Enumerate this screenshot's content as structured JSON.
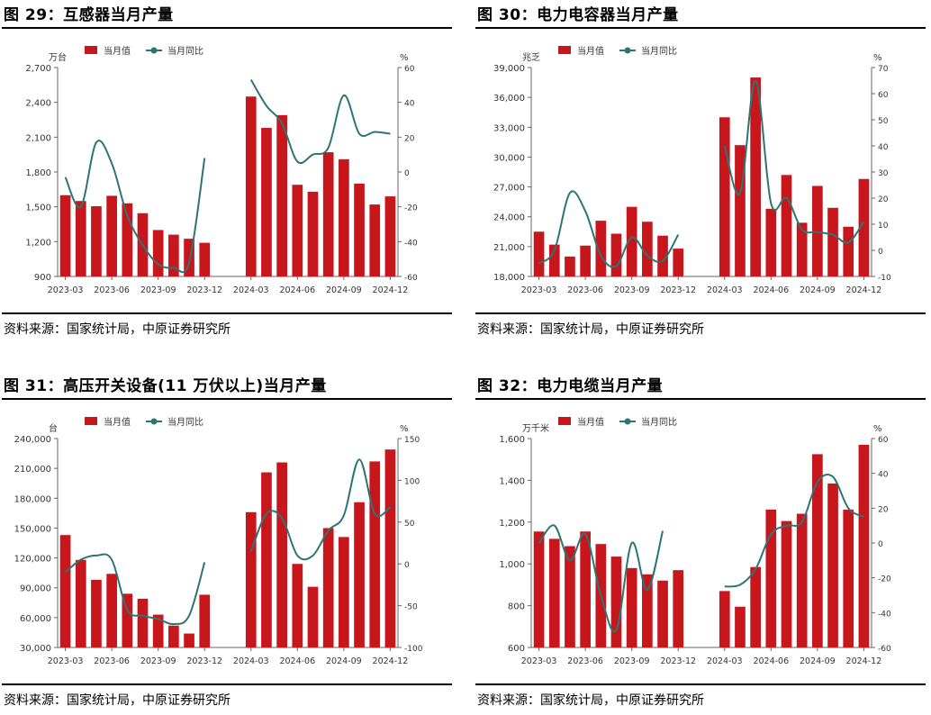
{
  "colors": {
    "bar": "#c8161d",
    "line": "#2e7474",
    "axis": "#666666",
    "text": "#333333"
  },
  "panels": [
    {
      "title": "图 29：互感器当月产量",
      "source": "资料来源：国家统计局，中原证券研究所",
      "chart_data": {
        "type": "bar",
        "legend": [
          "当月值",
          "当月同比"
        ],
        "legend_position": "top-center",
        "y_unit": "万台",
        "y2_unit": "%",
        "ylim": [
          900,
          2700
        ],
        "yticks": [
          900,
          1200,
          1500,
          1800,
          2100,
          2400,
          2700
        ],
        "y2lim": [
          -60,
          60
        ],
        "y2ticks": [
          -60,
          -40,
          -20,
          0,
          20,
          40,
          60
        ],
        "grid": false,
        "categories": [
          "2023-03",
          "2023-04",
          "2023-05",
          "2023-06",
          "2023-07",
          "2023-08",
          "2023-09",
          "2023-10",
          "2023-11",
          "2023-12",
          "2024-01",
          "2024-02",
          "2024-03",
          "2024-04",
          "2024-05",
          "2024-06",
          "2024-07",
          "2024-08",
          "2024-09",
          "2024-10",
          "2024-11",
          "2024-12"
        ],
        "xticks": [
          "2023-03",
          "2023-06",
          "2023-09",
          "2023-12",
          "2024-03",
          "2024-06",
          "2024-09",
          "2024-12"
        ],
        "series": [
          {
            "name": "当月值",
            "type": "bar",
            "values": [
              1600,
              1550,
              1505,
              1595,
              1530,
              1445,
              1300,
              1260,
              1225,
              1190,
              null,
              null,
              2450,
              2180,
              2290,
              1690,
              1630,
              1970,
              1910,
              1700,
              1520,
              1590
            ]
          },
          {
            "name": "当月同比",
            "type": "line",
            "axis": "right",
            "values": [
              -3,
              -20,
              17,
              5,
              -25,
              -42,
              -53,
              -55,
              -52,
              8,
              null,
              null,
              53,
              38,
              28,
              6,
              10,
              14,
              44,
              22,
              23,
              22
            ]
          }
        ]
      }
    },
    {
      "title": "图 30：电力电容器当月产量",
      "source": "资料来源：国家统计局，中原证券研究所",
      "chart_data": {
        "type": "bar",
        "legend": [
          "当月值",
          "当月同比"
        ],
        "legend_position": "top-center",
        "y_unit": "兆乏",
        "y2_unit": "%",
        "ylim": [
          18000,
          39000
        ],
        "yticks": [
          18000,
          21000,
          24000,
          27000,
          30000,
          33000,
          36000,
          39000
        ],
        "y2lim": [
          -10,
          70
        ],
        "y2ticks": [
          -10,
          0,
          10,
          20,
          30,
          40,
          50,
          60,
          70
        ],
        "grid": false,
        "categories": [
          "2023-03",
          "2023-04",
          "2023-05",
          "2023-06",
          "2023-07",
          "2023-08",
          "2023-09",
          "2023-10",
          "2023-11",
          "2023-12",
          "2024-01",
          "2024-02",
          "2024-03",
          "2024-04",
          "2024-05",
          "2024-06",
          "2024-07",
          "2024-08",
          "2024-09",
          "2024-10",
          "2024-11",
          "2024-12"
        ],
        "xticks": [
          "2023-03",
          "2023-06",
          "2023-09",
          "2023-12",
          "2024-03",
          "2024-06",
          "2024-09",
          "2024-12"
        ],
        "series": [
          {
            "name": "当月值",
            "type": "bar",
            "values": [
              22500,
              21200,
              20000,
              21100,
              23600,
              22300,
              25000,
              23500,
              22100,
              20800,
              null,
              null,
              34000,
              31200,
              38000,
              24800,
              28200,
              23400,
              27100,
              24900,
              23000,
              27800
            ]
          },
          {
            "name": "当月同比",
            "type": "line",
            "axis": "right",
            "values": [
              -5,
              0,
              22,
              15,
              -2,
              -6,
              5,
              -2,
              -4,
              6,
              null,
              null,
              40,
              22,
              65,
              18,
              20,
              8,
              7,
              6,
              3,
              11
            ]
          }
        ]
      }
    },
    {
      "title": "图 31：高压开关设备(11 万伏以上)当月产量",
      "source": "资料来源：国家统计局，中原证券研究所",
      "chart_data": {
        "type": "bar",
        "legend": [
          "当月值",
          "当月同比"
        ],
        "legend_position": "top-center",
        "y_unit": "台",
        "y2_unit": "%",
        "ylim": [
          30000,
          240000
        ],
        "yticks": [
          30000,
          60000,
          90000,
          120000,
          150000,
          180000,
          210000,
          240000
        ],
        "y2lim": [
          -100,
          150
        ],
        "y2ticks": [
          -100,
          -50,
          0,
          50,
          100,
          150
        ],
        "grid": false,
        "categories": [
          "2023-03",
          "2023-04",
          "2023-05",
          "2023-06",
          "2023-07",
          "2023-08",
          "2023-09",
          "2023-10",
          "2023-11",
          "2023-12",
          "2024-01",
          "2024-02",
          "2024-03",
          "2024-04",
          "2024-05",
          "2024-06",
          "2024-07",
          "2024-08",
          "2024-09",
          "2024-10",
          "2024-11",
          "2024-12"
        ],
        "xticks": [
          "2023-03",
          "2023-06",
          "2023-09",
          "2023-12",
          "2024-03",
          "2024-06",
          "2024-09",
          "2024-12"
        ],
        "series": [
          {
            "name": "当月值",
            "type": "bar",
            "values": [
              143000,
              118000,
              98000,
              104000,
              84000,
              79000,
              63000,
              52000,
              44000,
              83000,
              null,
              null,
              166000,
              206000,
              216000,
              114000,
              91000,
              150000,
              141000,
              176000,
              217000,
              229000
            ]
          },
          {
            "name": "当月同比",
            "type": "line",
            "axis": "right",
            "values": [
              -10,
              5,
              10,
              5,
              -55,
              -62,
              -66,
              -72,
              -62,
              2,
              null,
              null,
              15,
              60,
              55,
              10,
              10,
              40,
              58,
              125,
              60,
              68
            ]
          }
        ]
      }
    },
    {
      "title": "图 32：电力电缆当月产量",
      "source": "资料来源：国家统计局，中原证券研究所",
      "chart_data": {
        "type": "bar",
        "legend": [
          "当月值",
          "当月同比"
        ],
        "legend_position": "top-center",
        "y_unit": "万千米",
        "y2_unit": "%",
        "ylim": [
          600,
          1600
        ],
        "yticks": [
          600,
          800,
          1000,
          1200,
          1400,
          1600
        ],
        "y2lim": [
          -60,
          60
        ],
        "y2ticks": [
          -60,
          -40,
          -20,
          0,
          20,
          40,
          60
        ],
        "grid": false,
        "categories": [
          "2023-03",
          "2023-04",
          "2023-05",
          "2023-06",
          "2023-07",
          "2023-08",
          "2023-09",
          "2023-10",
          "2023-11",
          "2023-12",
          "2024-01",
          "2024-02",
          "2024-03",
          "2024-04",
          "2024-05",
          "2024-06",
          "2024-07",
          "2024-08",
          "2024-09",
          "2024-10",
          "2024-11",
          "2024-12"
        ],
        "xticks": [
          "2023-03",
          "2023-06",
          "2023-09",
          "2023-12",
          "2024-03",
          "2024-06",
          "2024-09",
          "2024-12"
        ],
        "series": [
          {
            "name": "当月值",
            "type": "bar",
            "values": [
              1155,
              1120,
              1085,
              1155,
              1095,
              1035,
              980,
              950,
              920,
              970,
              null,
              null,
              870,
              795,
              985,
              1260,
              1205,
              1240,
              1525,
              1385,
              1260,
              1570
            ]
          },
          {
            "name": "当月同比",
            "type": "line",
            "axis": "right",
            "values": [
              0,
              10,
              -10,
              5,
              -30,
              -50,
              0,
              -27,
              7,
              null,
              null,
              null,
              -25,
              -24,
              -15,
              5,
              10,
              12,
              35,
              38,
              20,
              15
            ]
          }
        ]
      }
    }
  ]
}
